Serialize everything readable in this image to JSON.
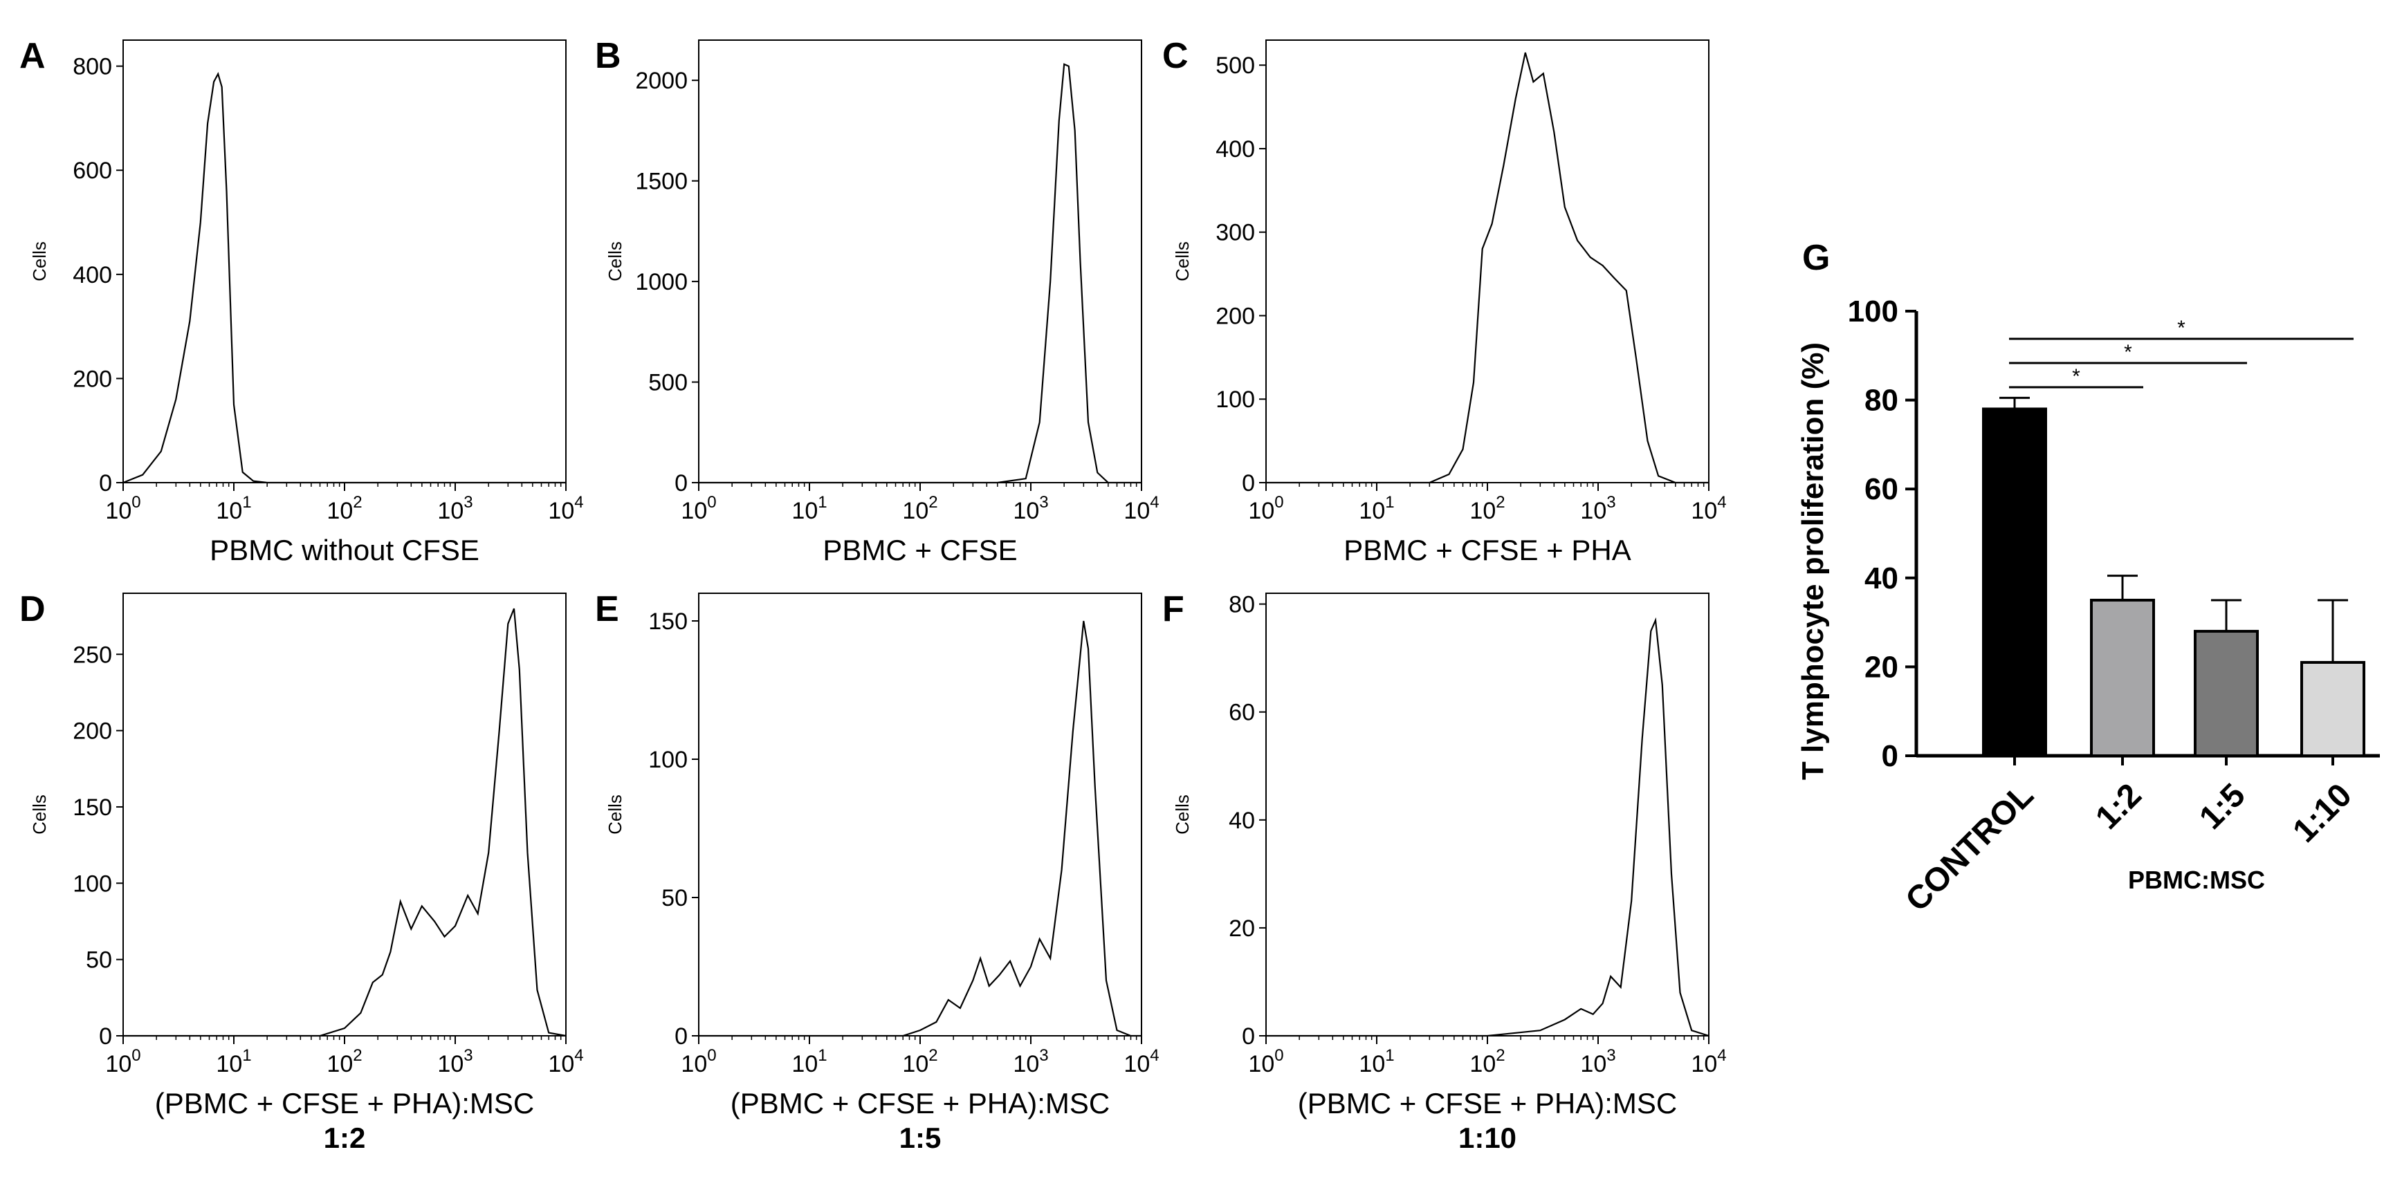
{
  "chart_data": [
    {
      "panel": "A",
      "type": "line",
      "title": "",
      "xlabel": "PBMC without CFSE",
      "xlabel_sub": "",
      "ylabel": "Cells",
      "xscale": "log",
      "xlim": [
        1,
        10000
      ],
      "ylim": [
        0,
        850
      ],
      "yticks": [
        0,
        200,
        400,
        600,
        800
      ],
      "x": [
        1,
        1.5,
        2.2,
        3,
        4,
        5,
        5.8,
        6.6,
        7.2,
        7.8,
        8.6,
        10,
        12,
        15,
        20,
        10000
      ],
      "y": [
        0,
        15,
        60,
        160,
        310,
        500,
        690,
        770,
        785,
        760,
        560,
        150,
        20,
        3,
        0,
        0
      ]
    },
    {
      "panel": "B",
      "type": "line",
      "title": "",
      "xlabel": "PBMC + CFSE",
      "xlabel_sub": "",
      "ylabel": "Cells",
      "xscale": "log",
      "xlim": [
        1,
        10000
      ],
      "ylim": [
        0,
        2200
      ],
      "yticks": [
        0,
        500,
        1000,
        1500,
        2000
      ],
      "x": [
        1,
        500,
        900,
        1200,
        1500,
        1800,
        2000,
        2200,
        2500,
        2800,
        3300,
        4000,
        5000,
        10000
      ],
      "y": [
        0,
        0,
        20,
        300,
        1000,
        1800,
        2080,
        2070,
        1750,
        1100,
        300,
        50,
        0,
        0
      ]
    },
    {
      "panel": "C",
      "type": "line",
      "title": "",
      "xlabel": "PBMC + CFSE + PHA",
      "xlabel_sub": "",
      "ylabel": "Cells",
      "xscale": "log",
      "xlim": [
        1,
        10000
      ],
      "ylim": [
        0,
        530
      ],
      "yticks": [
        0,
        100,
        200,
        300,
        400,
        500
      ],
      "x": [
        1,
        30,
        45,
        60,
        75,
        90,
        110,
        140,
        180,
        220,
        260,
        320,
        400,
        500,
        650,
        850,
        1100,
        1400,
        1800,
        2200,
        2800,
        3500,
        5000,
        10000
      ],
      "y": [
        0,
        0,
        10,
        40,
        120,
        280,
        310,
        380,
        460,
        515,
        480,
        490,
        420,
        330,
        290,
        270,
        260,
        245,
        230,
        150,
        50,
        8,
        0,
        0
      ]
    },
    {
      "panel": "D",
      "type": "line",
      "title": "",
      "xlabel": "(PBMC + CFSE + PHA):MSC",
      "xlabel_sub": "1:2",
      "ylabel": "Cells",
      "xscale": "log",
      "xlim": [
        1,
        10000
      ],
      "ylim": [
        0,
        290
      ],
      "yticks": [
        0,
        50,
        100,
        150,
        200,
        250
      ],
      "x": [
        1,
        60,
        100,
        140,
        180,
        220,
        260,
        320,
        400,
        500,
        650,
        800,
        1000,
        1300,
        1600,
        2000,
        2500,
        3000,
        3400,
        3800,
        4500,
        5500,
        7000,
        10000
      ],
      "y": [
        0,
        0,
        5,
        15,
        35,
        40,
        55,
        88,
        70,
        85,
        75,
        65,
        72,
        92,
        80,
        120,
        200,
        270,
        280,
        240,
        120,
        30,
        2,
        0
      ]
    },
    {
      "panel": "E",
      "type": "line",
      "title": "",
      "xlabel": "(PBMC + CFSE + PHA):MSC",
      "xlabel_sub": "1:5",
      "ylabel": "Cells",
      "xscale": "log",
      "xlim": [
        1,
        10000
      ],
      "ylim": [
        0,
        160
      ],
      "yticks": [
        0,
        50,
        100,
        150
      ],
      "x": [
        1,
        70,
        100,
        140,
        180,
        230,
        300,
        350,
        420,
        520,
        650,
        800,
        1000,
        1200,
        1500,
        1900,
        2400,
        3000,
        3300,
        3800,
        4800,
        6000,
        8000,
        10000
      ],
      "y": [
        0,
        0,
        2,
        5,
        13,
        10,
        20,
        28,
        18,
        22,
        27,
        18,
        25,
        35,
        28,
        60,
        110,
        150,
        140,
        90,
        20,
        2,
        0,
        0
      ]
    },
    {
      "panel": "F",
      "type": "line",
      "title": "",
      "xlabel": "(PBMC + CFSE + PHA):MSC",
      "xlabel_sub": "1:10",
      "ylabel": "Cells",
      "xscale": "log",
      "xlim": [
        1,
        10000
      ],
      "ylim": [
        0,
        82
      ],
      "yticks": [
        0,
        20,
        40,
        60,
        80
      ],
      "x": [
        1,
        100,
        300,
        500,
        700,
        900,
        1100,
        1300,
        1600,
        2000,
        2500,
        3000,
        3300,
        3800,
        4600,
        5500,
        7000,
        10000
      ],
      "y": [
        0,
        0,
        1,
        3,
        5,
        4,
        6,
        11,
        9,
        25,
        55,
        75,
        77,
        65,
        30,
        8,
        1,
        0
      ]
    },
    {
      "panel": "G",
      "type": "bar",
      "title": "",
      "xlabel": "PBMC:MSC",
      "ylabel": "T lymphocyte proliferation (%)",
      "ylim": [
        0,
        100
      ],
      "yticks": [
        0,
        20,
        40,
        60,
        80,
        100
      ],
      "categories": [
        "CONTROL",
        "1:2",
        "1:5",
        "1:10"
      ],
      "values": [
        78,
        35,
        28,
        21
      ],
      "errors": [
        2.5,
        5.5,
        7,
        14
      ],
      "colors": [
        "#000000",
        "#a6a6a8",
        "#7a7a7a",
        "#d8d8d8"
      ],
      "significance": [
        {
          "from": 0,
          "to": 1,
          "label": "*"
        },
        {
          "from": 0,
          "to": 2,
          "label": "*"
        },
        {
          "from": 0,
          "to": 3,
          "label": "*"
        }
      ]
    }
  ]
}
